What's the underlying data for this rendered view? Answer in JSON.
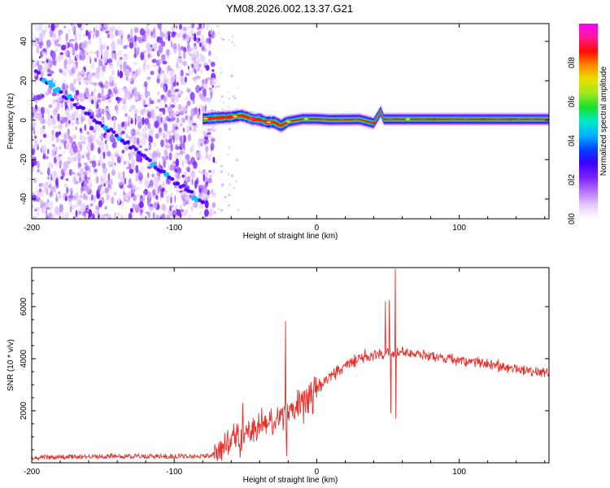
{
  "title": "YM08.2026.002.13.37.G21",
  "colors": {
    "line": "#e8302a",
    "frame": "#000000",
    "colormap": [
      "#ffffff",
      "#e7c8ff",
      "#b070ff",
      "#7a1fff",
      "#3b00ff",
      "#0044ff",
      "#00b3ff",
      "#00e8c8",
      "#19e02a",
      "#9ee81c",
      "#e8e000",
      "#ff8a00",
      "#ff0a00",
      "#ff1a90",
      "#ff00ff"
    ]
  },
  "chart_data": [
    {
      "type": "heatmap",
      "name": "spectrogram",
      "xlabel": "Height of straight line (km)",
      "ylabel": "Frequency (Hz)",
      "xlim": [
        -200,
        163
      ],
      "ylim": [
        -50,
        49
      ],
      "xticks": [
        -200,
        -100,
        0,
        100
      ],
      "xtick_labels": [
        "-200",
        "-100",
        "0",
        "100"
      ],
      "yticks": [
        -40,
        -20,
        0,
        20,
        40
      ],
      "ytick_labels": [
        "-40",
        "-20",
        "0",
        "20",
        "40"
      ],
      "noise_region_x": [
        -200,
        -72
      ],
      "diagonal_trace": {
        "x": [
          -197,
          -80
        ],
        "y": [
          24,
          -42
        ]
      },
      "zero_band": {
        "x": [
          -80,
          163
        ],
        "y_center": 0,
        "y_halfwidth": 2
      },
      "band_points": [
        {
          "x": -80,
          "y": 0.6
        },
        {
          "x": -70,
          "y": 1.2
        },
        {
          "x": -60,
          "y": 1.6
        },
        {
          "x": -53,
          "y": 2.4
        },
        {
          "x": -50,
          "y": 1.8
        },
        {
          "x": -45,
          "y": 0.5
        },
        {
          "x": -40,
          "y": 0.3
        },
        {
          "x": -35,
          "y": -1.0
        },
        {
          "x": -30,
          "y": -1.0
        },
        {
          "x": -25,
          "y": -2.8
        },
        {
          "x": -20,
          "y": -0.7
        },
        {
          "x": -10,
          "y": 0.6
        },
        {
          "x": 0,
          "y": 0.6
        },
        {
          "x": 10,
          "y": 0.2
        },
        {
          "x": 30,
          "y": 0.4
        },
        {
          "x": 40,
          "y": -1.5
        },
        {
          "x": 45,
          "y": 4.5
        },
        {
          "x": 47,
          "y": 0.5
        },
        {
          "x": 60,
          "y": 0.5
        },
        {
          "x": 100,
          "y": 0.5
        },
        {
          "x": 163,
          "y": 0.5
        }
      ],
      "colorbar": {
        "label": "Normalized spectral amplitude",
        "range": [
          0,
          1
        ],
        "ticks": [
          0,
          0.2,
          0.4,
          0.6,
          0.8
        ],
        "tick_labels": [
          "0.0",
          "0.2",
          "0.4",
          "0.6",
          "0.8"
        ]
      }
    },
    {
      "type": "line",
      "name": "snr",
      "xlabel": "Height of straight line (km)",
      "ylabel": "SNR (10 * v/v)",
      "xlim": [
        -200,
        163
      ],
      "ylim": [
        0,
        7500
      ],
      "xticks": [
        -200,
        -100,
        0,
        100
      ],
      "xtick_labels": [
        "-200",
        "-100",
        "0",
        "100"
      ],
      "yticks": [
        2000,
        4000,
        6000
      ],
      "ytick_labels": [
        "2000",
        "4000",
        "6000"
      ],
      "envelope": {
        "x": [
          -200,
          -150,
          -100,
          -75,
          -70,
          -60,
          -50,
          -40,
          -30,
          -20,
          -10,
          0,
          10,
          20,
          30,
          40,
          50,
          60,
          70,
          80,
          100,
          120,
          140,
          163
        ],
        "y": [
          200,
          250,
          250,
          260,
          450,
          800,
          1100,
          1400,
          1600,
          1950,
          2300,
          2800,
          3300,
          3700,
          4000,
          4150,
          4200,
          4250,
          4200,
          4100,
          3950,
          3800,
          3600,
          3450
        ]
      },
      "spikes": [
        {
          "x": -52,
          "y": 2300
        },
        {
          "x": -22,
          "y": 5450
        },
        {
          "x": -21,
          "y": 250
        },
        {
          "x": 48,
          "y": 6200
        },
        {
          "x": 51,
          "y": 6250
        },
        {
          "x": 52,
          "y": 1900
        },
        {
          "x": 55,
          "y": 7450
        },
        {
          "x": 55.6,
          "y": 1700
        }
      ]
    }
  ]
}
